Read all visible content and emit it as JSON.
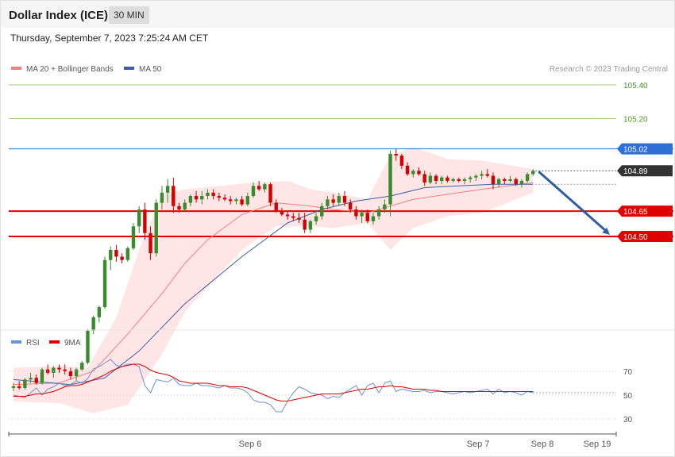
{
  "header": {
    "title": "Dollar Index (ICE)",
    "interval": "30 MIN"
  },
  "timestamp": "Thursday, September 7, 2023 7:25:24 AM CET",
  "legend": {
    "ma20_label": "MA 20 + Bollinger Bands",
    "ma50_label": "MA 50",
    "rsi_label": "RSI",
    "ma9_label": "9MA"
  },
  "credit": "Research © 2023 Trading Central",
  "colors": {
    "bull": "#3a8a2e",
    "bear": "#d40000",
    "resistance": "#2c6fd6",
    "support": "#e00000",
    "target": "#a4d07a",
    "ma20": "#f08080",
    "band": "#ffdcdc",
    "ma50": "#3b5ea8",
    "arrow": "#2f5fa0",
    "rsi": "#6b8fd8",
    "rsi_ma": "#e00000"
  },
  "chart_data": [
    {
      "type": "candlestick",
      "panel": "price",
      "title": "Dollar Index (ICE)",
      "ylim": [
        103.43,
        105.52
      ],
      "x_ticks": [
        "Sep 6",
        "Sep 7",
        "Sep 8",
        "Sep 19"
      ],
      "levels": [
        {
          "value": 105.4,
          "label": "105.40",
          "kind": "target"
        },
        {
          "value": 105.2,
          "label": "105.20",
          "kind": "target"
        },
        {
          "value": 105.02,
          "label": "105.02",
          "kind": "resistance"
        },
        {
          "value": 104.65,
          "label": "104.65",
          "kind": "support"
        },
        {
          "value": 104.5,
          "label": "104.50",
          "kind": "support"
        }
      ],
      "last_price": {
        "value": 104.89,
        "label": "104.89"
      },
      "ohlc": [
        [
          103.6,
          103.63,
          103.58,
          103.61
        ],
        [
          103.61,
          103.64,
          103.59,
          103.6
        ],
        [
          103.6,
          103.66,
          103.59,
          103.65
        ],
        [
          103.65,
          103.69,
          103.63,
          103.66
        ],
        [
          103.66,
          103.68,
          103.62,
          103.63
        ],
        [
          103.63,
          103.72,
          103.62,
          103.71
        ],
        [
          103.71,
          103.74,
          103.68,
          103.69
        ],
        [
          103.69,
          103.73,
          103.66,
          103.72
        ],
        [
          103.72,
          103.74,
          103.69,
          103.71
        ],
        [
          103.71,
          103.74,
          103.68,
          103.7
        ],
        [
          103.7,
          103.72,
          103.65,
          103.67
        ],
        [
          103.67,
          103.72,
          103.64,
          103.71
        ],
        [
          103.71,
          103.76,
          103.7,
          103.75
        ],
        [
          103.75,
          103.95,
          103.74,
          103.94
        ],
        [
          103.94,
          104.03,
          103.92,
          104.02
        ],
        [
          104.02,
          104.09,
          103.99,
          104.08
        ],
        [
          104.08,
          104.38,
          104.07,
          104.36
        ],
        [
          104.36,
          104.44,
          104.3,
          104.42
        ],
        [
          104.42,
          104.45,
          104.35,
          104.38
        ],
        [
          104.38,
          104.4,
          104.34,
          104.36
        ],
        [
          104.36,
          104.44,
          104.35,
          104.43
        ],
        [
          104.43,
          104.58,
          104.42,
          104.56
        ],
        [
          104.56,
          104.68,
          104.52,
          104.66
        ],
        [
          104.66,
          104.7,
          104.48,
          104.52
        ],
        [
          104.52,
          104.56,
          104.36,
          104.4
        ],
        [
          104.4,
          104.72,
          104.38,
          104.7
        ],
        [
          104.7,
          104.8,
          104.66,
          104.76
        ],
        [
          104.76,
          104.84,
          104.7,
          104.8
        ],
        [
          104.8,
          104.85,
          104.64,
          104.68
        ],
        [
          104.68,
          104.7,
          104.64,
          104.66
        ],
        [
          104.66,
          104.72,
          104.65,
          104.7
        ],
        [
          104.7,
          104.75,
          104.68,
          104.74
        ],
        [
          104.74,
          104.77,
          104.7,
          104.72
        ],
        [
          104.72,
          104.77,
          104.69,
          104.74
        ],
        [
          104.74,
          104.78,
          104.72,
          104.76
        ],
        [
          104.76,
          104.78,
          104.72,
          104.74
        ],
        [
          104.74,
          104.76,
          104.71,
          104.73
        ],
        [
          104.73,
          104.75,
          104.71,
          104.72
        ],
        [
          104.72,
          104.74,
          104.69,
          104.71
        ],
        [
          104.71,
          104.73,
          104.69,
          104.72
        ],
        [
          104.72,
          104.74,
          104.68,
          104.69
        ],
        [
          104.69,
          104.76,
          104.68,
          104.74
        ],
        [
          104.74,
          104.82,
          104.73,
          104.8
        ],
        [
          104.8,
          104.83,
          104.77,
          104.78
        ],
        [
          104.78,
          104.82,
          104.76,
          104.81
        ],
        [
          104.81,
          104.82,
          104.68,
          104.7
        ],
        [
          104.7,
          104.72,
          104.64,
          104.65
        ],
        [
          104.65,
          104.67,
          104.62,
          104.63
        ],
        [
          104.63,
          104.65,
          104.6,
          104.62
        ],
        [
          104.62,
          104.64,
          104.59,
          104.61
        ],
        [
          104.61,
          104.64,
          104.58,
          104.6
        ],
        [
          104.6,
          104.64,
          104.52,
          104.54
        ],
        [
          104.54,
          104.6,
          104.52,
          104.59
        ],
        [
          104.59,
          104.64,
          104.57,
          104.62
        ],
        [
          104.62,
          104.7,
          104.6,
          104.68
        ],
        [
          104.68,
          104.74,
          104.66,
          104.72
        ],
        [
          104.72,
          104.75,
          104.68,
          104.7
        ],
        [
          104.7,
          104.76,
          104.68,
          104.74
        ],
        [
          104.74,
          104.77,
          104.68,
          104.7
        ],
        [
          104.7,
          104.72,
          104.64,
          104.66
        ],
        [
          104.66,
          104.68,
          104.6,
          104.62
        ],
        [
          104.62,
          104.66,
          104.58,
          104.64
        ],
        [
          104.64,
          104.66,
          104.58,
          104.59
        ],
        [
          104.59,
          104.64,
          104.57,
          104.62
        ],
        [
          104.62,
          104.68,
          104.6,
          104.66
        ],
        [
          104.66,
          104.72,
          104.64,
          104.69
        ],
        [
          104.69,
          105.01,
          104.62,
          104.99
        ],
        [
          104.99,
          105.02,
          104.95,
          104.98
        ],
        [
          104.98,
          104.99,
          104.9,
          104.92
        ],
        [
          104.92,
          104.94,
          104.86,
          104.87
        ],
        [
          104.87,
          104.9,
          104.85,
          104.89
        ],
        [
          104.89,
          104.91,
          104.86,
          104.87
        ],
        [
          104.87,
          104.89,
          104.8,
          104.82
        ],
        [
          104.82,
          104.88,
          104.81,
          104.86
        ],
        [
          104.86,
          104.87,
          104.81,
          104.83
        ],
        [
          104.83,
          104.86,
          104.81,
          104.85
        ],
        [
          104.85,
          104.86,
          104.82,
          104.83
        ],
        [
          104.83,
          104.85,
          104.82,
          104.84
        ],
        [
          104.84,
          104.85,
          104.82,
          104.83
        ],
        [
          104.83,
          104.85,
          104.81,
          104.84
        ],
        [
          104.84,
          104.86,
          104.82,
          104.85
        ],
        [
          104.85,
          104.87,
          104.83,
          104.86
        ],
        [
          104.86,
          104.89,
          104.84,
          104.87
        ],
        [
          104.87,
          104.9,
          104.85,
          104.86
        ],
        [
          104.86,
          104.88,
          104.78,
          104.81
        ],
        [
          104.81,
          104.85,
          104.79,
          104.84
        ],
        [
          104.84,
          104.85,
          104.81,
          104.83
        ],
        [
          104.83,
          104.86,
          104.82,
          104.84
        ],
        [
          104.84,
          104.85,
          104.8,
          104.81
        ],
        [
          104.81,
          104.84,
          104.79,
          104.83
        ],
        [
          104.83,
          104.88,
          104.82,
          104.87
        ],
        [
          104.87,
          104.9,
          104.86,
          104.89
        ]
      ],
      "ma20": [
        [
          0,
          103.62
        ],
        [
          8,
          103.63
        ],
        [
          14,
          103.7
        ],
        [
          20,
          103.92
        ],
        [
          26,
          104.16
        ],
        [
          30,
          104.34
        ],
        [
          34,
          104.48
        ],
        [
          40,
          104.63
        ],
        [
          46,
          104.7
        ],
        [
          52,
          104.68
        ],
        [
          56,
          104.66
        ],
        [
          62,
          104.64
        ],
        [
          66,
          104.68
        ],
        [
          70,
          104.72
        ],
        [
          76,
          104.75
        ],
        [
          82,
          104.78
        ],
        [
          91,
          104.82
        ]
      ],
      "bollinger_upper": [
        [
          0,
          103.72
        ],
        [
          8,
          103.73
        ],
        [
          13,
          103.72
        ],
        [
          18,
          104.02
        ],
        [
          22,
          104.42
        ],
        [
          26,
          104.75
        ],
        [
          30,
          104.78
        ],
        [
          36,
          104.8
        ],
        [
          42,
          104.82
        ],
        [
          48,
          104.83
        ],
        [
          52,
          104.78
        ],
        [
          56,
          104.76
        ],
        [
          62,
          104.72
        ],
        [
          66,
          104.98
        ],
        [
          70,
          105.03
        ],
        [
          76,
          104.96
        ],
        [
          82,
          104.95
        ],
        [
          91,
          104.9
        ]
      ],
      "bollinger_lower": [
        [
          0,
          103.52
        ],
        [
          8,
          103.51
        ],
        [
          14,
          103.45
        ],
        [
          20,
          103.5
        ],
        [
          26,
          103.8
        ],
        [
          30,
          104.05
        ],
        [
          34,
          104.2
        ],
        [
          40,
          104.42
        ],
        [
          46,
          104.56
        ],
        [
          52,
          104.56
        ],
        [
          56,
          104.55
        ],
        [
          62,
          104.58
        ],
        [
          66,
          104.42
        ],
        [
          70,
          104.55
        ],
        [
          76,
          104.62
        ],
        [
          82,
          104.64
        ],
        [
          91,
          104.76
        ]
      ],
      "ma50": [
        [
          0,
          103.65
        ],
        [
          10,
          103.62
        ],
        [
          16,
          103.66
        ],
        [
          22,
          103.82
        ],
        [
          30,
          104.1
        ],
        [
          40,
          104.38
        ],
        [
          48,
          104.58
        ],
        [
          54,
          104.66
        ],
        [
          60,
          104.71
        ],
        [
          66,
          104.74
        ],
        [
          72,
          104.79
        ],
        [
          78,
          104.8
        ],
        [
          84,
          104.81
        ],
        [
          91,
          104.81
        ]
      ],
      "forecast_arrow": {
        "from": 104.89,
        "to": 104.5
      }
    },
    {
      "type": "line",
      "panel": "rsi",
      "ylim": [
        20,
        82
      ],
      "y_ticks": [
        70,
        50,
        30
      ],
      "series": [
        {
          "name": "RSI",
          "values": [
            50,
            49,
            48,
            52,
            56,
            50,
            55,
            57,
            60,
            58,
            59,
            62,
            60,
            64,
            72,
            74,
            77,
            80,
            75,
            74,
            76,
            76,
            74,
            58,
            52,
            63,
            62,
            61,
            64,
            59,
            58,
            58,
            60,
            58,
            58,
            57,
            56,
            58,
            56,
            56,
            55,
            52,
            46,
            44,
            44,
            42,
            36,
            36,
            45,
            52,
            57,
            55,
            52,
            51,
            50,
            47,
            49,
            48,
            52,
            55,
            58,
            50,
            58,
            60,
            52,
            60,
            62,
            53,
            55,
            54,
            53,
            53,
            54,
            52,
            53,
            53,
            52,
            51,
            52,
            53,
            52,
            53,
            54,
            55,
            51,
            55,
            52,
            53,
            52,
            50,
            53,
            52
          ]
        },
        {
          "name": "9MA",
          "values": [
            49,
            49,
            49,
            50,
            51,
            51,
            52,
            53,
            55,
            57,
            58,
            58,
            59,
            61,
            63,
            65,
            67,
            70,
            72,
            74,
            75,
            76,
            76,
            74,
            71,
            69,
            68,
            67,
            65,
            62,
            61,
            60,
            60,
            60,
            60,
            59,
            58,
            58,
            57,
            57,
            57,
            56,
            54,
            52,
            50,
            48,
            46,
            45,
            45,
            46,
            47,
            48,
            49,
            50,
            51,
            51,
            51,
            51,
            52,
            53,
            54,
            55,
            55,
            56,
            57,
            57,
            58,
            57,
            57,
            56,
            55,
            55,
            55,
            54,
            54,
            53,
            53,
            53,
            53,
            53,
            53,
            53,
            53,
            53,
            53,
            53,
            53,
            53,
            53,
            53,
            53,
            53
          ]
        }
      ],
      "forecast_label": ""
    }
  ]
}
